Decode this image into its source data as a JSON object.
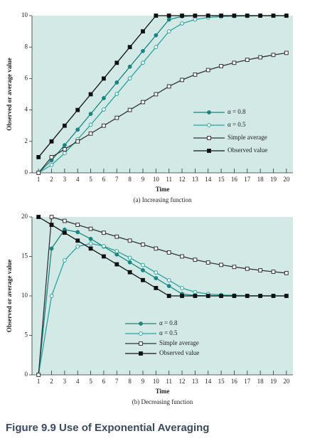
{
  "figure_title": "Figure 9.9 Use of Exponential Averaging",
  "chart_data": [
    {
      "type": "line",
      "caption": "(a) Increasing function",
      "xlabel": "Time",
      "ylabel": "Observed or average value",
      "x": [
        1,
        2,
        3,
        4,
        5,
        6,
        7,
        8,
        9,
        10,
        11,
        12,
        13,
        14,
        15,
        16,
        17,
        18,
        19,
        20
      ],
      "xlim": [
        0.5,
        20.5
      ],
      "xticks": [
        1,
        2,
        3,
        4,
        5,
        6,
        7,
        8,
        9,
        10,
        11,
        12,
        13,
        14,
        15,
        16,
        17,
        18,
        19,
        20
      ],
      "ylim": [
        0,
        10
      ],
      "yticks": [
        0,
        2,
        4,
        6,
        8,
        10
      ],
      "background": "#d3e9e5",
      "series": [
        {
          "name": "α = 0.8",
          "color": "#1a8582",
          "marker": "filled-circle",
          "values": [
            0,
            0.8,
            1.76,
            2.75,
            3.75,
            4.75,
            5.75,
            6.75,
            7.75,
            8.75,
            9.75,
            9.95,
            9.99,
            10,
            10,
            10,
            10,
            10,
            10,
            10
          ]
        },
        {
          "name": "α = 0.5",
          "color": "#2aa3a0",
          "marker": "hollow-circle",
          "values": [
            0,
            0.5,
            1.25,
            2.13,
            3.06,
            4.03,
            5.02,
            6.01,
            7.0,
            8.0,
            9.0,
            9.5,
            9.75,
            9.88,
            9.94,
            9.97,
            9.98,
            9.99,
            10,
            10
          ]
        },
        {
          "name": "Simple average",
          "color": "#333333",
          "marker": "hollow-square",
          "values": [
            0,
            1,
            1.5,
            2,
            2.5,
            3,
            3.5,
            4,
            4.5,
            5,
            5.5,
            5.91,
            6.25,
            6.54,
            6.79,
            7,
            7.19,
            7.35,
            7.5,
            7.63
          ]
        },
        {
          "name": "Observed value",
          "color": "#111111",
          "marker": "filled-square",
          "values": [
            1,
            2,
            3,
            4,
            5,
            6,
            7,
            8,
            9,
            10,
            10,
            10,
            10,
            10,
            10,
            10,
            10,
            10,
            10,
            10
          ]
        }
      ]
    },
    {
      "type": "line",
      "caption": "(b) Decreasing function",
      "xlabel": "Time",
      "ylabel": "Observed or average value",
      "x": [
        1,
        2,
        3,
        4,
        5,
        6,
        7,
        8,
        9,
        10,
        11,
        12,
        13,
        14,
        15,
        16,
        17,
        18,
        19,
        20
      ],
      "xlim": [
        0.5,
        20.5
      ],
      "xticks": [
        1,
        2,
        3,
        4,
        5,
        6,
        7,
        8,
        9,
        10,
        11,
        12,
        13,
        14,
        15,
        16,
        17,
        18,
        19,
        20
      ],
      "ylim": [
        0,
        20
      ],
      "yticks": [
        0,
        5,
        10,
        15,
        20
      ],
      "background": "#d3e9e5",
      "series": [
        {
          "name": "α = 0.8",
          "color": "#1a8582",
          "marker": "filled-circle",
          "values": [
            0,
            16,
            18.4,
            18.08,
            17.22,
            16.24,
            15.25,
            14.25,
            13.25,
            12.25,
            11.25,
            10.25,
            10.05,
            10.01,
            10,
            10,
            10,
            10,
            10,
            10
          ]
        },
        {
          "name": "α = 0.5",
          "color": "#2aa3a0",
          "marker": "hollow-circle",
          "values": [
            0,
            10,
            14.5,
            16.25,
            16.63,
            16.31,
            15.66,
            14.83,
            13.91,
            12.96,
            11.98,
            10.99,
            10.49,
            10.25,
            10.12,
            10.06,
            10.03,
            10.02,
            10.01,
            10
          ]
        },
        {
          "name": "Simple average",
          "color": "#333333",
          "marker": "hollow-square",
          "values": [
            0,
            20,
            19.5,
            19,
            18.5,
            18,
            17.5,
            17,
            16.5,
            16,
            15.5,
            15,
            14.58,
            14.23,
            13.93,
            13.67,
            13.44,
            13.24,
            13.06,
            12.89
          ]
        },
        {
          "name": "Observed value",
          "color": "#111111",
          "marker": "filled-square",
          "values": [
            20,
            19,
            18,
            17,
            16,
            15,
            14,
            13,
            12,
            11,
            10,
            10,
            10,
            10,
            10,
            10,
            10,
            10,
            10,
            10
          ]
        }
      ]
    }
  ]
}
